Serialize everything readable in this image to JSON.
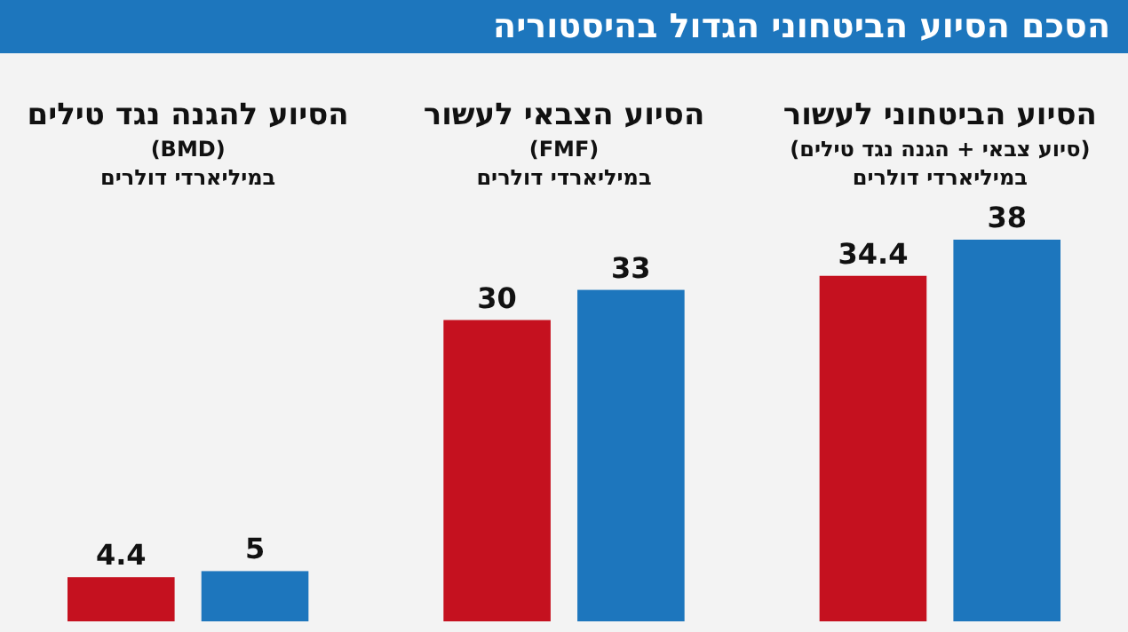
{
  "chart_data": [
    {
      "type": "other",
      "title": "הסכם הסיוע הביטחוני הגדול בהיסטוריה"
    },
    {
      "type": "bar",
      "title": "הסיוע הביטחוני לעשור",
      "subtitle": "(סיוע צבאי + הגנה נגד טילים)",
      "annotations": [
        "במיליארדי דולרים"
      ],
      "categories": [
        null,
        null
      ],
      "values": [
        34.4,
        38
      ],
      "colors": [
        "#c5111f",
        "#1d76bd"
      ],
      "data_labels": true
    },
    {
      "type": "bar",
      "title": "הסיוע הצבאי לעשור",
      "subtitle": "(FMF)",
      "annotations": [
        "במיליארדי דולרים"
      ],
      "categories": [
        null,
        null
      ],
      "values": [
        30,
        33
      ],
      "colors": [
        "#c5111f",
        "#1d76bd"
      ],
      "data_labels": true
    },
    {
      "type": "bar",
      "title": "הסיוע להגנה נגד טילים",
      "subtitle": "(BMD)",
      "annotations": [
        "במיליארדי דולרים"
      ],
      "categories": [
        null,
        null
      ],
      "values": [
        4.4,
        5
      ],
      "colors": [
        "#c5111f",
        "#1d76bd"
      ],
      "data_labels": true
    }
  ]
}
